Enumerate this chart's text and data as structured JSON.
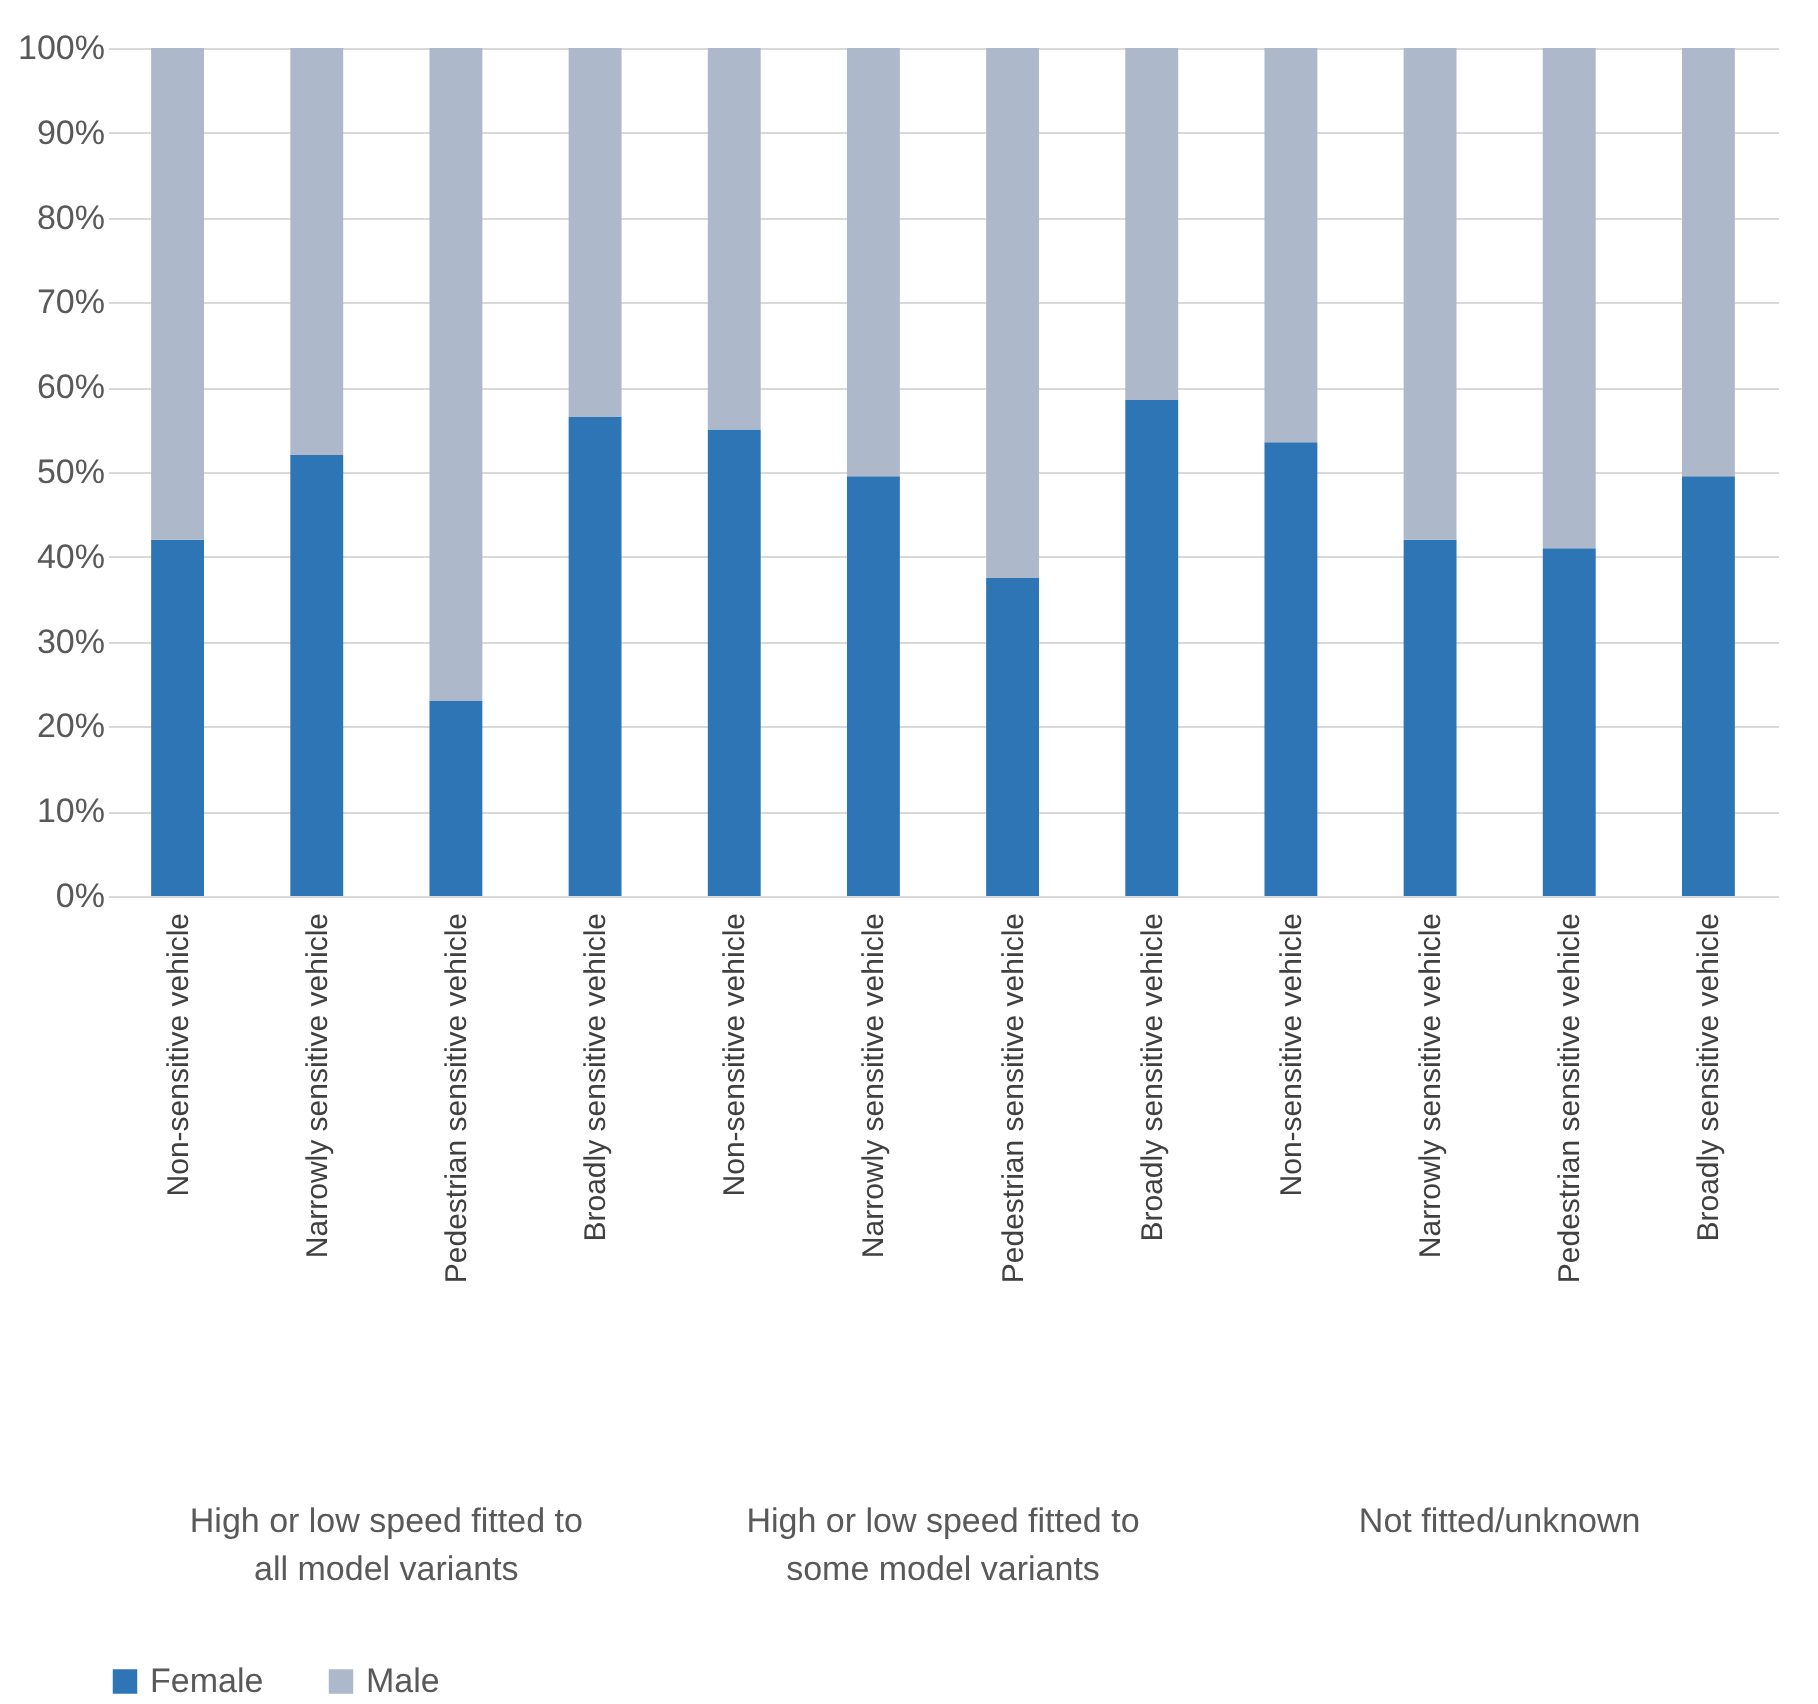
{
  "chart_data": {
    "type": "bar",
    "stacked": true,
    "categories": [
      "Non-sensitive vehicle",
      "Narrowly sensitive vehicle",
      "Pedestrian sensitive vehicle",
      "Broadly sensitive vehicle",
      "Non-sensitive vehicle",
      "Narrowly sensitive vehicle",
      "Pedestrian sensitive vehicle",
      "Broadly sensitive vehicle",
      "Non-sensitive vehicle",
      "Narrowly sensitive vehicle",
      "Pedestrian sensitive vehicle",
      "Broadly sensitive vehicle"
    ],
    "series": [
      {
        "name": "Female",
        "color": "#2e75b6",
        "values": [
          42,
          52,
          23,
          56.5,
          55,
          49.5,
          37.5,
          58.5,
          53.5,
          42,
          41,
          49.5
        ]
      },
      {
        "name": "Male",
        "color": "#adb9ca",
        "values": [
          58,
          48,
          77,
          43.5,
          45,
          50.5,
          62.5,
          41.5,
          46.5,
          58,
          59,
          50.5
        ]
      }
    ],
    "ylim": [
      0,
      100
    ],
    "yticks": [
      {
        "value": 0,
        "label": "0%"
      },
      {
        "value": 10,
        "label": "10%"
      },
      {
        "value": 20,
        "label": "20%"
      },
      {
        "value": 30,
        "label": "30%"
      },
      {
        "value": 40,
        "label": "40%"
      },
      {
        "value": 50,
        "label": "50%"
      },
      {
        "value": 60,
        "label": "60%"
      },
      {
        "value": 70,
        "label": "70%"
      },
      {
        "value": 80,
        "label": "80%"
      },
      {
        "value": 90,
        "label": "90%"
      },
      {
        "value": 100,
        "label": "100%"
      }
    ],
    "grid": "y",
    "legend": "bottom",
    "annotations": [
      "High or low speed fitted to all model variants",
      "High or low speed fitted to some model variants",
      "Not fitted/unknown"
    ]
  }
}
